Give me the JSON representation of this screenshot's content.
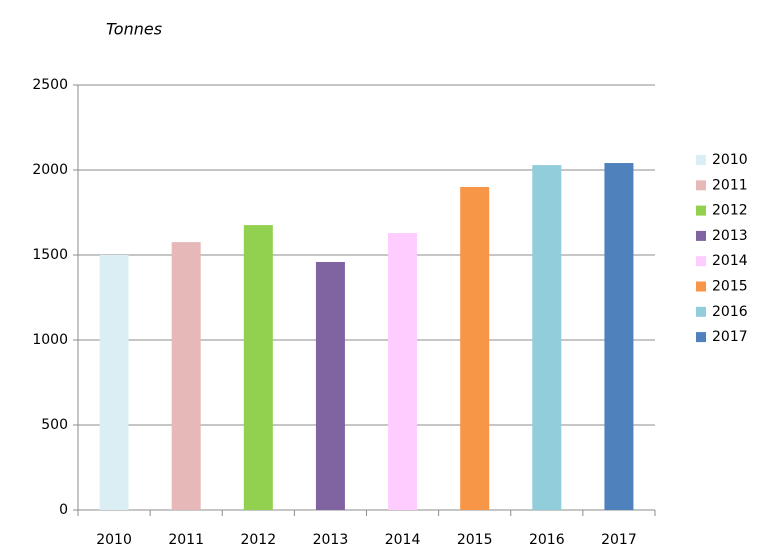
{
  "chart_data": {
    "type": "bar",
    "subtitle": "Tonnes",
    "categories": [
      "2010",
      "2011",
      "2012",
      "2013",
      "2014",
      "2015",
      "2016",
      "2017"
    ],
    "values": [
      1500,
      1576,
      1676,
      1459,
      1629,
      1900,
      2029,
      2041
    ],
    "colors": [
      "#dbeef4",
      "#e6b9b8",
      "#92d050",
      "#8064a2",
      "#ffccff",
      "#f79646",
      "#92cddc",
      "#4f81bd"
    ],
    "ylim": [
      0,
      2500
    ],
    "yticks": [
      0,
      500,
      1000,
      1500,
      2000,
      2500
    ],
    "grid": true,
    "legend": "right"
  }
}
